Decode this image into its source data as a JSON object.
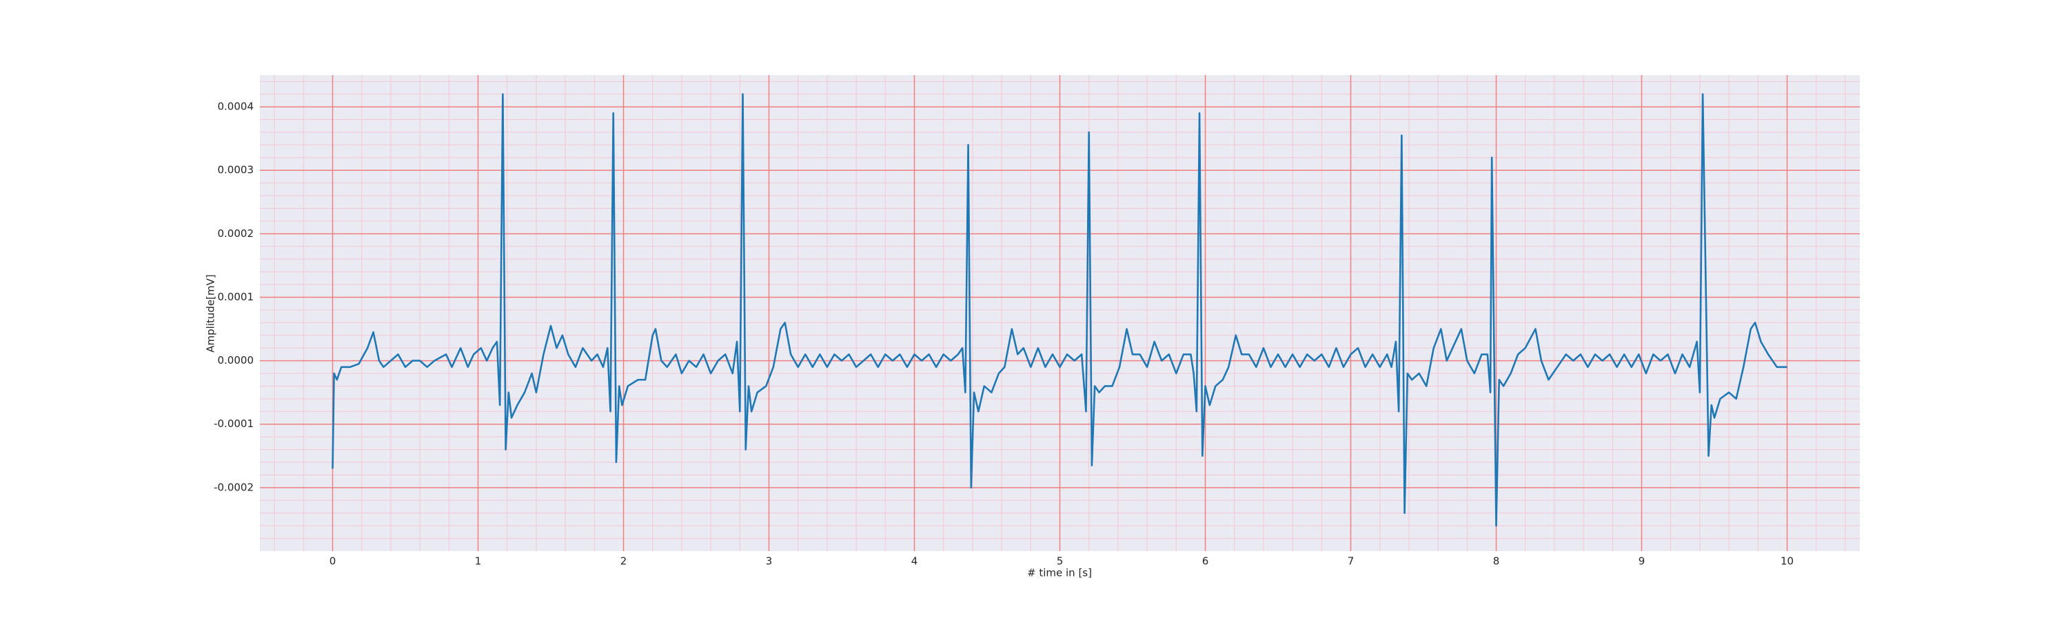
{
  "chart_data": {
    "type": "line",
    "xlabel": "# time in [s]",
    "ylabel": "Amplitude[mV]",
    "color": "#1f77b4",
    "major_grid_color": "#f08080",
    "minor_grid_color": "#f4c6d4",
    "grid": true,
    "minor_grid": true,
    "xlim": [
      -0.5,
      10.5
    ],
    "ylim": [
      -0.0003,
      0.00045
    ],
    "xticks": [
      0,
      1,
      2,
      3,
      4,
      5,
      6,
      7,
      8,
      9,
      10
    ],
    "yticks": [
      -0.0002,
      -0.0001,
      {
        "value": 0,
        "label": "0.0000"
      },
      0.0001,
      0.0002,
      0.0003,
      0.0004
    ],
    "x": [
      0,
      0.01,
      0.03,
      0.06,
      0.12,
      0.18,
      0.24,
      0.28,
      0.32,
      0.35,
      0.4,
      0.45,
      0.5,
      0.55,
      0.6,
      0.65,
      0.7,
      0.78,
      0.82,
      0.88,
      0.93,
      0.97,
      1.02,
      1.06,
      1.1,
      1.13,
      1.15,
      1.17,
      1.19,
      1.21,
      1.23,
      1.27,
      1.32,
      1.37,
      1.4,
      1.45,
      1.5,
      1.54,
      1.58,
      1.62,
      1.67,
      1.72,
      1.78,
      1.82,
      1.86,
      1.89,
      1.91,
      1.93,
      1.95,
      1.97,
      1.99,
      2.03,
      2.1,
      2.15,
      2.2,
      2.22,
      2.26,
      2.3,
      2.36,
      2.4,
      2.45,
      2.5,
      2.55,
      2.6,
      2.65,
      2.7,
      2.75,
      2.78,
      2.8,
      2.82,
      2.84,
      2.86,
      2.88,
      2.92,
      2.98,
      3.03,
      3.08,
      3.11,
      3.15,
      3.2,
      3.25,
      3.3,
      3.35,
      3.4,
      3.45,
      3.5,
      3.55,
      3.6,
      3.65,
      3.7,
      3.75,
      3.8,
      3.85,
      3.9,
      3.95,
      4.0,
      4.05,
      4.1,
      4.15,
      4.2,
      4.25,
      4.3,
      4.33,
      4.35,
      4.37,
      4.39,
      4.41,
      4.44,
      4.48,
      4.53,
      4.58,
      4.62,
      4.67,
      4.71,
      4.75,
      4.8,
      4.85,
      4.9,
      4.95,
      5.0,
      5.05,
      5.1,
      5.15,
      5.18,
      5.2,
      5.22,
      5.24,
      5.27,
      5.31,
      5.36,
      5.41,
      5.46,
      5.5,
      5.55,
      5.6,
      5.65,
      5.7,
      5.75,
      5.8,
      5.85,
      5.9,
      5.92,
      5.94,
      5.96,
      5.98,
      6.0,
      6.03,
      6.07,
      6.12,
      6.16,
      6.21,
      6.25,
      6.3,
      6.35,
      6.4,
      6.45,
      6.5,
      6.55,
      6.6,
      6.65,
      6.7,
      6.75,
      6.8,
      6.85,
      6.9,
      6.95,
      7.0,
      7.05,
      7.1,
      7.15,
      7.2,
      7.25,
      7.28,
      7.31,
      7.33,
      7.35,
      7.37,
      7.39,
      7.42,
      7.47,
      7.52,
      7.57,
      7.62,
      7.66,
      7.7,
      7.76,
      7.8,
      7.85,
      7.9,
      7.94,
      7.96,
      7.97,
      8.0,
      8.02,
      8.05,
      8.1,
      8.15,
      8.2,
      8.27,
      8.31,
      8.36,
      8.42,
      8.48,
      8.53,
      8.58,
      8.63,
      8.68,
      8.73,
      8.78,
      8.83,
      8.88,
      8.93,
      8.98,
      9.03,
      9.08,
      9.13,
      9.18,
      9.23,
      9.28,
      9.33,
      9.38,
      9.4,
      9.42,
      9.46,
      9.48,
      9.5,
      9.54,
      9.6,
      9.65,
      9.7,
      9.75,
      9.78,
      9.82,
      9.87,
      9.93,
      10.0
    ],
    "values": [
      -0.00017,
      -2e-05,
      -3e-05,
      -1e-05,
      -1e-05,
      -5e-06,
      2e-05,
      4.5e-05,
      0,
      -1e-05,
      0,
      1e-05,
      -1e-05,
      0,
      0,
      -1e-05,
      0,
      1e-05,
      -1e-05,
      2e-05,
      -1e-05,
      1e-05,
      2e-05,
      0,
      2e-05,
      3e-05,
      -7e-05,
      0.00042,
      -0.00014,
      -5e-05,
      -9e-05,
      -7e-05,
      -5e-05,
      -2e-05,
      -5e-05,
      1e-05,
      5.5e-05,
      2e-05,
      4e-05,
      1e-05,
      -1e-05,
      2e-05,
      0,
      1e-05,
      -1e-05,
      2e-05,
      -8e-05,
      0.00039,
      -0.00016,
      -4e-05,
      -7e-05,
      -4e-05,
      -3e-05,
      -3e-05,
      4e-05,
      5e-05,
      0,
      -1e-05,
      1e-05,
      -2e-05,
      0,
      -1e-05,
      1e-05,
      -2e-05,
      0,
      1e-05,
      -2e-05,
      3e-05,
      -8e-05,
      0.00042,
      -0.00014,
      -4e-05,
      -8e-05,
      -5e-05,
      -4e-05,
      -1e-05,
      5e-05,
      6e-05,
      1e-05,
      -1e-05,
      1e-05,
      -1e-05,
      1e-05,
      -1e-05,
      1e-05,
      0,
      1e-05,
      -1e-05,
      0,
      1e-05,
      -1e-05,
      1e-05,
      0,
      1e-05,
      -1e-05,
      1e-05,
      0,
      1e-05,
      -1e-05,
      1e-05,
      0,
      1e-05,
      2e-05,
      -5e-05,
      0.00034,
      -0.0002,
      -5e-05,
      -8e-05,
      -4e-05,
      -5e-05,
      -2e-05,
      -1e-05,
      5e-05,
      1e-05,
      2e-05,
      -1e-05,
      2e-05,
      -1e-05,
      1e-05,
      -1e-05,
      1e-05,
      0,
      1e-05,
      -8e-05,
      0.00036,
      -0.000165,
      -4e-05,
      -5e-05,
      -4e-05,
      -4e-05,
      -1e-05,
      5e-05,
      1e-05,
      1e-05,
      -1e-05,
      3e-05,
      0,
      1e-05,
      -2e-05,
      1e-05,
      1e-05,
      -2e-05,
      -8e-05,
      0.00039,
      -0.00015,
      -4e-05,
      -7e-05,
      -4e-05,
      -3e-05,
      -1e-05,
      4e-05,
      1e-05,
      1e-05,
      -1e-05,
      2e-05,
      -1e-05,
      1e-05,
      -1e-05,
      1e-05,
      -1e-05,
      1e-05,
      0,
      1e-05,
      -1e-05,
      2e-05,
      -1e-05,
      1e-05,
      2e-05,
      -1e-05,
      1e-05,
      -1e-05,
      1e-05,
      -1e-05,
      3e-05,
      -8e-05,
      0.000355,
      -0.00024,
      -2e-05,
      -3e-05,
      -2e-05,
      -4e-05,
      2e-05,
      5e-05,
      0,
      2e-05,
      5e-05,
      0,
      -2e-05,
      1e-05,
      1e-05,
      -5e-05,
      0.00032,
      -0.00026,
      -3e-05,
      -4e-05,
      -2e-05,
      1e-05,
      2e-05,
      5e-05,
      0,
      -3e-05,
      -1e-05,
      1e-05,
      0,
      1e-05,
      -1e-05,
      1e-05,
      0,
      1e-05,
      -1e-05,
      1e-05,
      -1e-05,
      1e-05,
      -2e-05,
      1e-05,
      0,
      1e-05,
      -2e-05,
      1e-05,
      -1e-05,
      3e-05,
      -5e-05,
      0.00042,
      -0.00015,
      -7e-05,
      -9e-05,
      -6e-05,
      -5e-05,
      -6e-05,
      -1e-05,
      5e-05,
      6e-05,
      3e-05,
      1e-05,
      -1e-05,
      -1e-05
    ]
  }
}
